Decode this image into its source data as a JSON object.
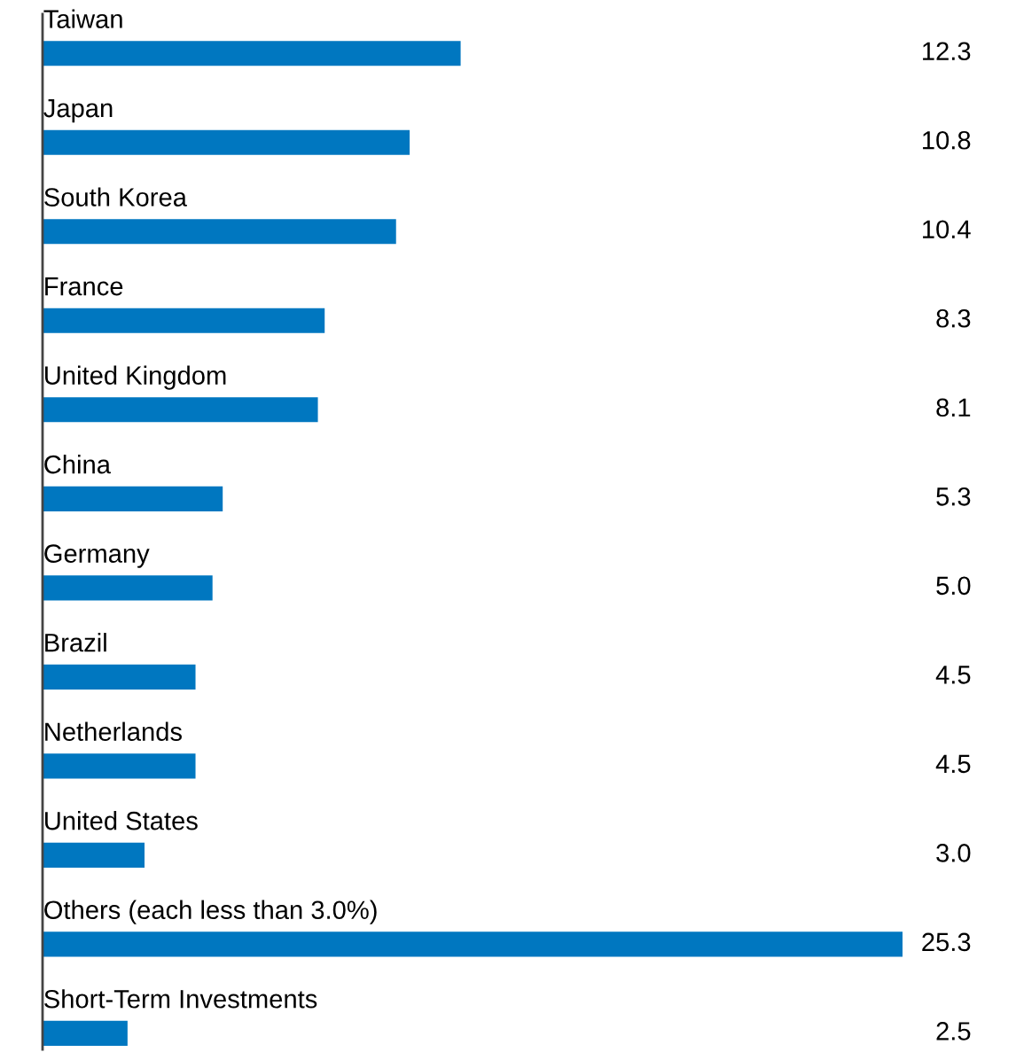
{
  "chart_data": {
    "type": "bar",
    "orientation": "horizontal",
    "categories": [
      "Taiwan",
      "Japan",
      "South Korea",
      "France",
      "United Kingdom",
      "China",
      "Germany",
      "Brazil",
      "Netherlands",
      "United States",
      "Others (each less than 3.0%)",
      "Short-Term Investments"
    ],
    "values": [
      12.3,
      10.8,
      10.4,
      8.3,
      8.1,
      5.3,
      5.0,
      4.5,
      4.5,
      3.0,
      25.3,
      2.5
    ],
    "value_labels": [
      "12.3",
      "10.8",
      "10.4",
      "8.3",
      "8.1",
      "5.3",
      "5.0",
      "4.5",
      "4.5",
      "3.0",
      "25.3",
      "2.5"
    ],
    "color": "#0077c0"
  }
}
